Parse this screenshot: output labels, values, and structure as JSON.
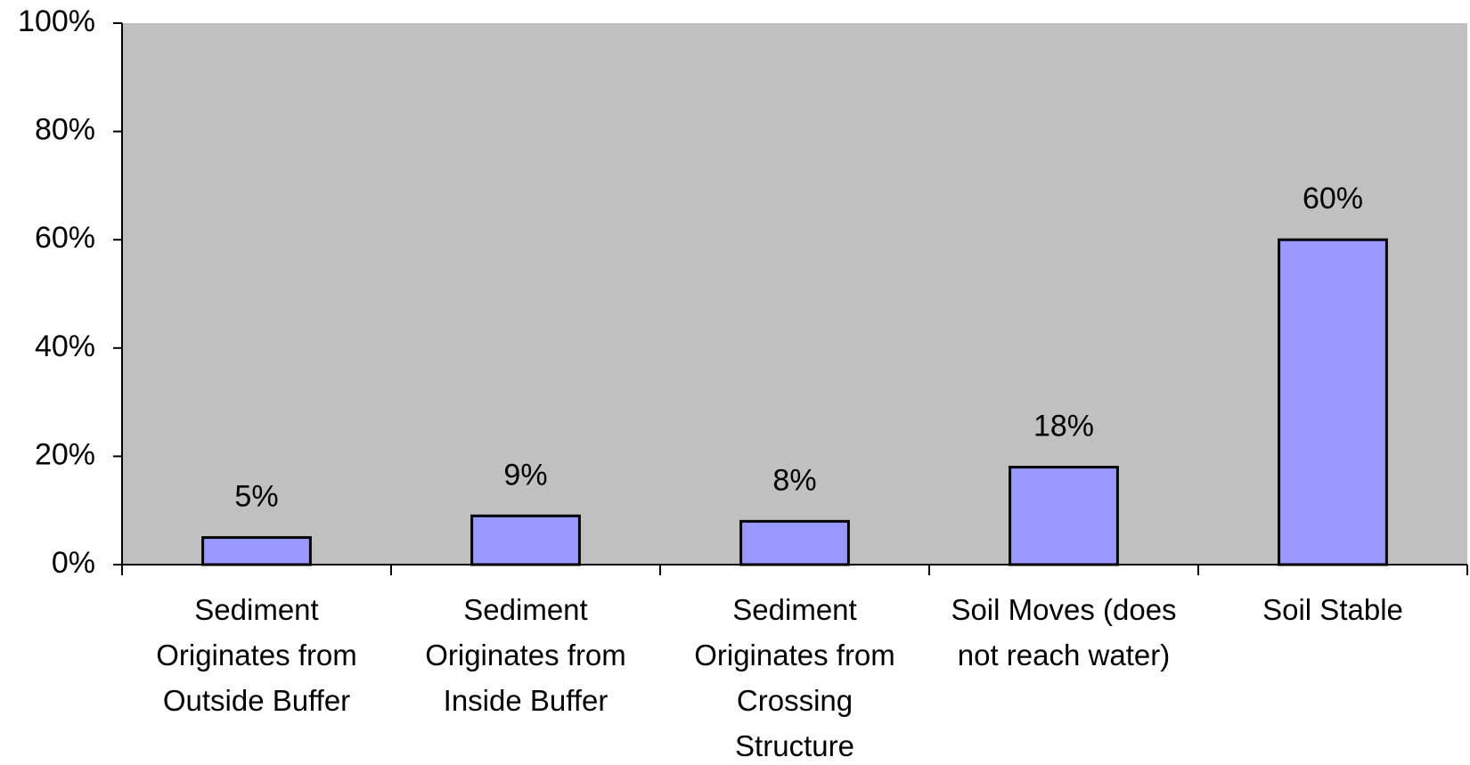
{
  "chart_data": {
    "type": "bar",
    "categories": [
      "Sediment Originates from Outside Buffer",
      "Sediment Originates from Inside Buffer",
      "Sediment Originates from Crossing Structure",
      "Soil Moves (does not reach water)",
      "Soil Stable"
    ],
    "values": [
      5,
      9,
      8,
      18,
      60
    ],
    "value_labels": [
      "5%",
      "9%",
      "8%",
      "18%",
      "60%"
    ],
    "color": "#9999ff",
    "plot_background": "#c0c0c0",
    "ylim": [
      0,
      100
    ],
    "yticks": [
      {
        "value": 0,
        "label": "0%"
      },
      {
        "value": 20,
        "label": "20%"
      },
      {
        "value": 40,
        "label": "40%"
      },
      {
        "value": 60,
        "label": "60%"
      },
      {
        "value": 80,
        "label": "80%"
      },
      {
        "value": 100,
        "label": "100%"
      }
    ],
    "grid": false
  }
}
